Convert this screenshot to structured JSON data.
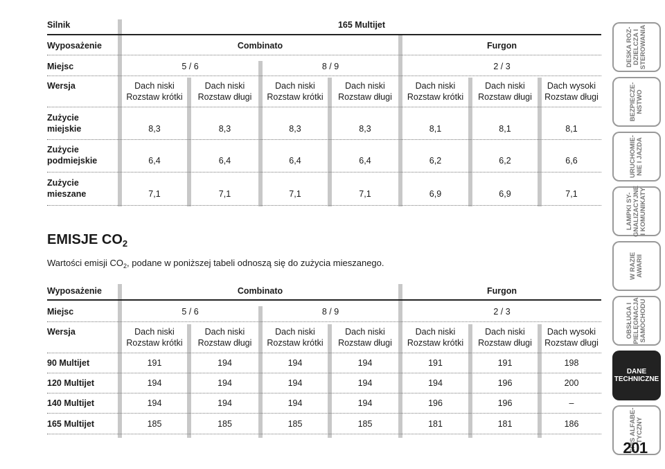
{
  "table1": {
    "engine_label": "Silnik",
    "engine_value": "165 Multijet",
    "equipment_label": "Wyposażenie",
    "combinato": "Combinato",
    "furgon": "Furgon",
    "seats_label": "Miejsc",
    "seats": [
      "5 / 6",
      "8 / 9",
      "2 / 3"
    ],
    "version_label": "Wersja",
    "versions": [
      [
        "Dach niski",
        "Rozstaw krótki"
      ],
      [
        "Dach niski",
        "Rozstaw długi"
      ],
      [
        "Dach niski",
        "Rozstaw krótki"
      ],
      [
        "Dach niski",
        "Rozstaw długi"
      ],
      [
        "Dach niski",
        "Rozstaw krótki"
      ],
      [
        "Dach niski",
        "Rozstaw długi"
      ],
      [
        "Dach wysoki",
        "Rozstaw długi"
      ]
    ],
    "rows": [
      {
        "label": [
          "Zużycie",
          "miejskie"
        ],
        "values": [
          "8,3",
          "8,3",
          "8,3",
          "8,3",
          "8,1",
          "8,1",
          "8,1"
        ]
      },
      {
        "label": [
          "Zużycie",
          "podmiejskie"
        ],
        "values": [
          "6,4",
          "6,4",
          "6,4",
          "6,4",
          "6,2",
          "6,2",
          "6,6"
        ]
      },
      {
        "label": [
          "Zużycie",
          "mieszane"
        ],
        "values": [
          "7,1",
          "7,1",
          "7,1",
          "7,1",
          "6,9",
          "6,9",
          "7,1"
        ]
      }
    ]
  },
  "section": {
    "title": "EMISJE CO",
    "title_sub": "2",
    "intro_before": "Wartości emisji CO",
    "intro_sub": "2",
    "intro_after": ", podane w poniższej tabeli odnoszą się do zużycia mieszanego."
  },
  "table2": {
    "equipment_label": "Wyposażenie",
    "combinato": "Combinato",
    "furgon": "Furgon",
    "seats_label": "Miejsc",
    "seats": [
      "5 / 6",
      "8 / 9",
      "2 / 3"
    ],
    "version_label": "Wersja",
    "versions": [
      [
        "Dach niski",
        "Rozstaw krótki"
      ],
      [
        "Dach niski",
        "Rozstaw długi"
      ],
      [
        "Dach niski",
        "Rozstaw krótki"
      ],
      [
        "Dach niski",
        "Rozstaw długi"
      ],
      [
        "Dach niski",
        "Rozstaw krótki"
      ],
      [
        "Dach niski",
        "Rozstaw długi"
      ],
      [
        "Dach wysoki",
        "Rozstaw długi"
      ]
    ],
    "rows": [
      {
        "label": "90 Multijet",
        "values": [
          "191",
          "194",
          "194",
          "194",
          "191",
          "191",
          "198"
        ]
      },
      {
        "label": "120 Multijet",
        "values": [
          "194",
          "194",
          "194",
          "194",
          "194",
          "196",
          "200"
        ]
      },
      {
        "label": "140 Multijet",
        "values": [
          "194",
          "194",
          "194",
          "194",
          "196",
          "196",
          "–"
        ]
      },
      {
        "label": "165 Multijet",
        "values": [
          "185",
          "185",
          "185",
          "185",
          "181",
          "181",
          "186"
        ]
      }
    ]
  },
  "tabs": [
    {
      "label": "DESKA ROZ-\nDZIELCZA I\nSTEROWANIA",
      "active": false
    },
    {
      "label": "BEZPIECZE-\nNSTWO",
      "active": false
    },
    {
      "label": "URUCHOMIE-\nNIE I JAZDA",
      "active": false
    },
    {
      "label": "LAMPKI SY-\nGNALIZACYJNE\nI KOMUNIKATY",
      "active": false
    },
    {
      "label": "W RAZIE\nAWARII",
      "active": false
    },
    {
      "label": "OBSŁUGA I\nPIELĘGNACJA\nSAMOCHODU",
      "active": false
    },
    {
      "label": "DANE\nTECHNICZNE",
      "active": true
    },
    {
      "label": "SPIS ALFABE-\nTYCZNY",
      "active": false
    }
  ],
  "page_number": "201"
}
